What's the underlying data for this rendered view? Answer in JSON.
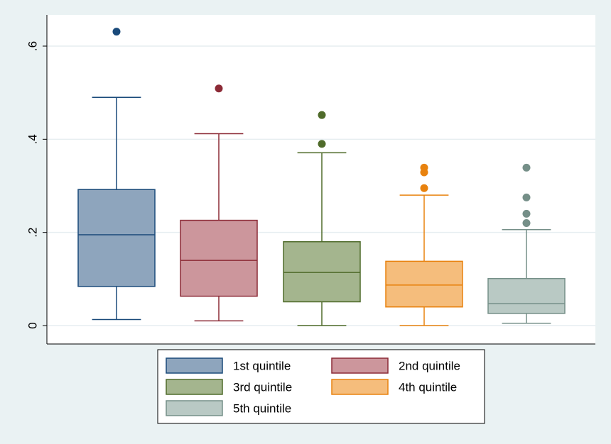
{
  "chart_data": {
    "type": "box",
    "title": "",
    "xlabel": "",
    "ylabel": "",
    "ylim": [
      0,
      0.67
    ],
    "y_ticks": [
      {
        "value": 0,
        "label": "0"
      },
      {
        "value": 0.2,
        "label": ".2"
      },
      {
        "value": 0.4,
        "label": ".4"
      },
      {
        "value": 0.6,
        "label": ".6"
      }
    ],
    "grid": true,
    "legend_position": "bottom",
    "series": [
      {
        "name": "1st quintile",
        "fill": "#8ea5bd",
        "stroke": "#1a4a7a",
        "whisker_low": 0.013,
        "q1": 0.084,
        "median": 0.195,
        "q3": 0.292,
        "whisker_high": 0.49,
        "outliers": [
          0.631
        ]
      },
      {
        "name": "2nd quintile",
        "fill": "#cc969c",
        "stroke": "#8c2a36",
        "whisker_low": 0.01,
        "q1": 0.063,
        "median": 0.14,
        "q3": 0.226,
        "whisker_high": 0.412,
        "outliers": [
          0.509
        ]
      },
      {
        "name": "3rd quintile",
        "fill": "#a4b58e",
        "stroke": "#4f6b2a",
        "whisker_low": 0.0,
        "q1": 0.051,
        "median": 0.114,
        "q3": 0.18,
        "whisker_high": 0.371,
        "outliers": [
          0.39,
          0.452
        ]
      },
      {
        "name": "4th quintile",
        "fill": "#f5bd7c",
        "stroke": "#e8820e",
        "whisker_low": 0.0,
        "q1": 0.04,
        "median": 0.087,
        "q3": 0.138,
        "whisker_high": 0.28,
        "outliers": [
          0.295,
          0.329,
          0.339
        ]
      },
      {
        "name": "5th quintile",
        "fill": "#b9c9c4",
        "stroke": "#758f88",
        "whisker_low": 0.005,
        "q1": 0.026,
        "median": 0.047,
        "q3": 0.101,
        "whisker_high": 0.206,
        "outliers": [
          0.22,
          0.24,
          0.275,
          0.339
        ]
      }
    ]
  }
}
